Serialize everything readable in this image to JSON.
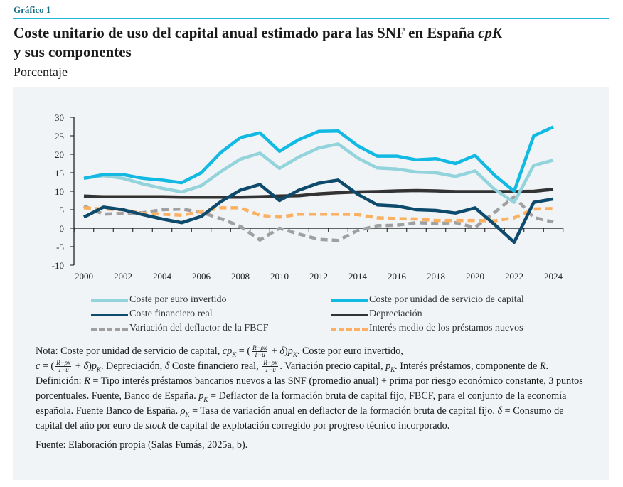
{
  "header": {
    "label": "Gráfico 1",
    "title_line1": "Coste unitario de uso del capital anual estimado para las SNF en España ",
    "title_symbol": "cpK",
    "title_line2": "y sus componentes",
    "subtitle": "Porcentaje"
  },
  "chart_data": {
    "type": "line",
    "title": "Coste unitario de uso del capital anual estimado para las SNF en España cpK y sus componentes",
    "ylabel": "Porcentaje",
    "xlabel": "",
    "ylim": [
      -10,
      30
    ],
    "yticks": [
      30,
      25,
      20,
      15,
      10,
      5,
      0,
      -5,
      -10
    ],
    "xlim": [
      2000,
      2024
    ],
    "xticks": [
      2000,
      2002,
      2004,
      2006,
      2008,
      2010,
      2012,
      2014,
      2016,
      2018,
      2020,
      2022,
      2024
    ],
    "legend_placement": "bottom",
    "x": [
      2000,
      2001,
      2002,
      2003,
      2004,
      2005,
      2006,
      2007,
      2008,
      2009,
      2010,
      2011,
      2012,
      2013,
      2014,
      2015,
      2016,
      2017,
      2018,
      2019,
      2020,
      2021,
      2022,
      2023,
      2024
    ],
    "series": [
      {
        "name": "Coste por euro invertido",
        "color": "#93d3dc",
        "dash": false,
        "values": [
          13.5,
          14.2,
          13.5,
          12,
          10.8,
          9.8,
          11.5,
          15.3,
          18.7,
          20.3,
          16.2,
          19.3,
          21.7,
          22.8,
          19,
          16.3,
          16,
          15.2,
          15,
          14,
          15.5,
          10.5,
          7,
          17,
          18.4
        ]
      },
      {
        "name": "Coste por unidad de servicio de capital",
        "color": "#12b9e3",
        "dash": false,
        "values": [
          13.5,
          14.5,
          14.5,
          13.5,
          13,
          12.3,
          15,
          20.5,
          24.5,
          25.8,
          20.8,
          24,
          26.2,
          26.3,
          22.3,
          19.5,
          19.5,
          18.5,
          18.8,
          17.5,
          19.7,
          14.3,
          10,
          25,
          27.4
        ]
      },
      {
        "name": "Coste financiero real",
        "color": "#0d4a6b",
        "dash": false,
        "values": [
          3,
          5.7,
          5,
          3.7,
          2.5,
          1.5,
          3.2,
          7.2,
          10.3,
          11.8,
          7.5,
          10.3,
          12.2,
          13,
          9.2,
          6.3,
          6,
          5,
          4.8,
          4.1,
          5.5,
          1,
          -3.8,
          7,
          7.9
        ]
      },
      {
        "name": "Depreciación",
        "color": "#333333",
        "dash": false,
        "values": [
          8.7,
          8.5,
          8.5,
          8.5,
          8.5,
          8.4,
          8.4,
          8.4,
          8.4,
          8.5,
          8.7,
          8.8,
          9.3,
          9.6,
          9.8,
          9.9,
          10.1,
          10.2,
          10.1,
          9.9,
          9.9,
          9.9,
          9.9,
          10,
          10.5
        ]
      },
      {
        "name": "Variación del deflactor de la FBCF",
        "color": "#a0a0a0",
        "dash": true,
        "values": [
          6,
          3.8,
          4,
          4.2,
          5,
          5.2,
          4.3,
          2.6,
          0.5,
          -3.2,
          0,
          -1.6,
          -3,
          -3.3,
          -0.6,
          0.7,
          0.8,
          1.5,
          1.3,
          1.5,
          0.2,
          4.3,
          8.5,
          2.9,
          1.7
        ]
      },
      {
        "name": "Interés medio de los préstamos nuevos",
        "color": "#fbb161",
        "dash": true,
        "values": [
          5.5,
          5.2,
          5,
          4,
          3.8,
          3.5,
          4.5,
          5.5,
          5.5,
          3.5,
          3,
          3.8,
          3.8,
          3.8,
          3.7,
          2.8,
          2.6,
          2.5,
          2.1,
          2.1,
          2.1,
          2,
          2.8,
          5.2,
          5.3
        ]
      }
    ]
  },
  "note": [
    {
      "t": "Nota: Coste por unidad de servicio de capital, "
    },
    {
      "m": "cp"
    },
    {
      "m": "K",
      "sub": true
    },
    {
      "t": " = "
    },
    {
      "t": "("
    },
    {
      "frac": [
        "R−ρκ",
        "1−u"
      ]
    },
    {
      "t": " + "
    },
    {
      "m": "δ"
    },
    {
      "t": ")"
    },
    {
      "m": "p"
    },
    {
      "m": "K",
      "sub": true
    },
    {
      "t": ". Coste por euro invertido, "
    },
    {
      "br": true
    },
    {
      "m": "c"
    },
    {
      "t": " = "
    },
    {
      "t": "("
    },
    {
      "frac": [
        "R−ρκ",
        "1−u"
      ]
    },
    {
      "t": " + "
    },
    {
      "m": "δ"
    },
    {
      "t": ")"
    },
    {
      "m": "p"
    },
    {
      "m": "K",
      "sub": true
    },
    {
      "t": ". Depreciación, "
    },
    {
      "m": "δ"
    },
    {
      "t": " Coste financiero real, "
    },
    {
      "frac": [
        "R−ρκ",
        "1−u"
      ]
    },
    {
      "t": ". Variación precio capital, "
    },
    {
      "m": "p"
    },
    {
      "m": "K",
      "sub": true
    },
    {
      "t": ". Interés préstamos, componente de "
    },
    {
      "m": "R"
    },
    {
      "t": ". Definición: "
    },
    {
      "m": "R"
    },
    {
      "t": " = Tipo interés préstamos bancarios nuevos a las SNF (promedio anual) + prima por riesgo económico constante, 3 puntos porcentuales. Fuente, Banco de España. "
    },
    {
      "m": "p"
    },
    {
      "m": "K",
      "sub": true
    },
    {
      "t": " = Deflactor de la formación bruta de capital fijo, FBCF, para el conjunto de la economía española. Fuente Banco de España. "
    },
    {
      "m": "ρ"
    },
    {
      "m": "K",
      "sub": true
    },
    {
      "t": " = Tasa de variación anual en deflactor de la formación bruta de capital fijo. "
    },
    {
      "m": "δ"
    },
    {
      "t": " = Consumo de capital del año por euro de "
    },
    {
      "m": "stock"
    },
    {
      "t": " de capital de explotación corregido por progreso técnico incorporado."
    }
  ],
  "source": "Fuente: Elaboración propia (Salas Fumás, 2025a, b)."
}
